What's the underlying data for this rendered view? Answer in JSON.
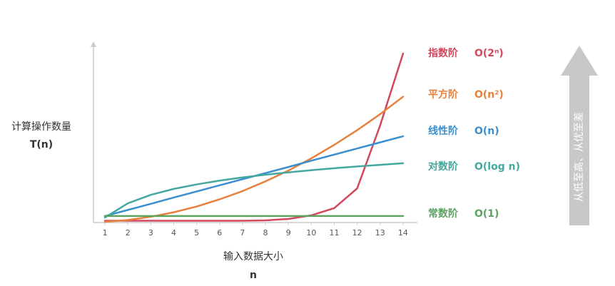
{
  "chart_data": {
    "type": "line",
    "y_label": "计算操作数量",
    "y_label_sub": "T(n)",
    "x_label": "输入数据大小",
    "x_label_sub": "n",
    "annotation": "从低至高、从优至差",
    "x": [
      1,
      2,
      3,
      4,
      5,
      6,
      7,
      8,
      9,
      10,
      11,
      12,
      13,
      14
    ],
    "xlim": [
      0.5,
      14.5
    ],
    "xticks": [
      1,
      2,
      3,
      4,
      5,
      6,
      7,
      8,
      9,
      10,
      11,
      12,
      13,
      14
    ],
    "ylim": [
      0,
      100
    ],
    "series": [
      {
        "name": "指数阶",
        "notation": "O(2ⁿ)",
        "color": "#d4485d",
        "values": [
          1,
          1,
          1,
          1,
          1,
          1,
          1,
          1.2,
          2,
          4,
          8,
          19,
          54,
          94
        ]
      },
      {
        "name": "平方阶",
        "notation": "O(n²)",
        "color": "#e8803c",
        "values": [
          0.4,
          1.4,
          3.2,
          5.7,
          8.9,
          12.9,
          17.5,
          22.9,
          28.9,
          35.7,
          43.2,
          51.4,
          60.3,
          70
        ]
      },
      {
        "name": "线性阶",
        "notation": "O(n)",
        "color": "#3a8fcf",
        "values": [
          3.6,
          7,
          10.4,
          13.9,
          17.3,
          20.7,
          24.1,
          27.5,
          30.9,
          34.4,
          37.8,
          41.2,
          44.6,
          48
        ]
      },
      {
        "name": "对数阶",
        "notation": "O(log n)",
        "color": "#44a89e",
        "values": [
          2.8,
          10.7,
          15.4,
          18.7,
          21.2,
          23.3,
          25.1,
          26.6,
          27.9,
          29.1,
          30.2,
          31.2,
          32.1,
          33
        ]
      },
      {
        "name": "常数阶",
        "notation": "O(1)",
        "color": "#5ca35f",
        "values": [
          3.6,
          3.6,
          3.6,
          3.6,
          3.6,
          3.6,
          3.6,
          3.6,
          3.6,
          3.6,
          3.6,
          3.6,
          3.6,
          3.6
        ]
      }
    ]
  }
}
